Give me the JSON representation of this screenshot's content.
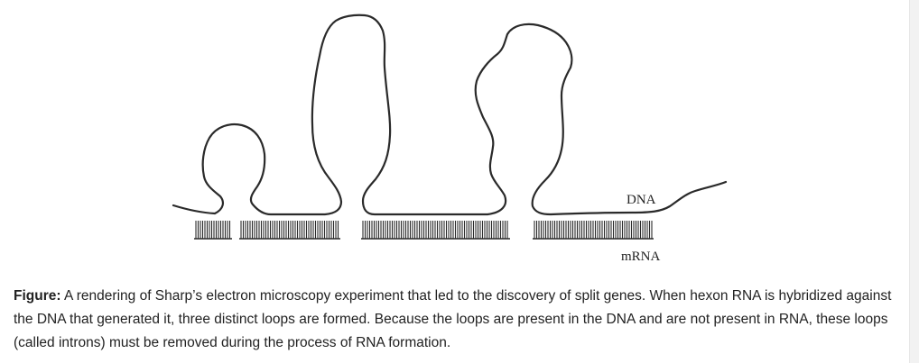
{
  "diagram": {
    "labels": {
      "dna": "DNA",
      "mrna": "mRNA"
    },
    "colors": {
      "stroke": "#2a2a2a",
      "text": "#222222"
    }
  },
  "caption": {
    "lead": "Figure:",
    "text": "A rendering of Sharp’s electron microscopy experiment that led to the discovery of split genes. When hexon RNA is hybridized against the DNA that generated it, three distinct loops are formed. Because the loops are present in the DNA and are not present in RNA, these loops (called introns) must be removed during the process of RNA formation."
  }
}
